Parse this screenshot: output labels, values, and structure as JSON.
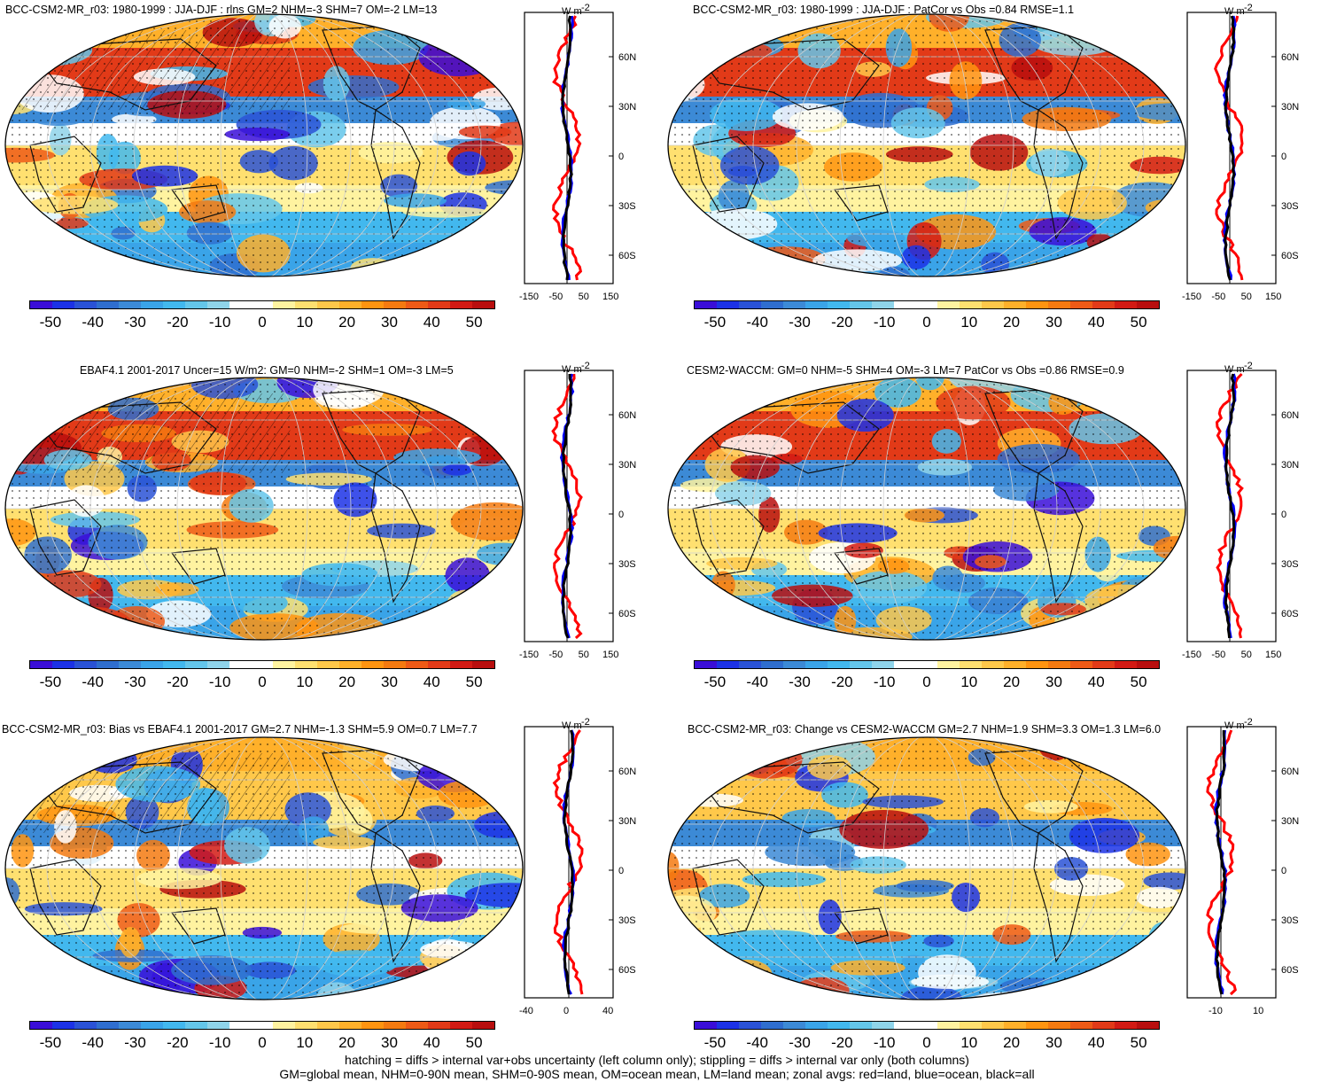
{
  "panels": [
    {
      "title": "BCC-CSM2-MR_r03: 1980-1999 : JJA-DJF : rlns GM=2 NHM=-3 SHM=7 OM=-2 LM=13",
      "hatch": true,
      "zx": [
        "-150",
        "-50",
        "50",
        "150"
      ],
      "zscale": "wide"
    },
    {
      "title": "BCC-CSM2-MR_r03: 1980-1999 : JJA-DJF : PatCor vs Obs =0.84 RMSE=1.1",
      "hatch": false,
      "zx": [
        "-150",
        "-50",
        "50",
        "150"
      ],
      "zscale": "wide"
    },
    {
      "title": "EBAF4.1 2001-2017 Uncer=15 W/m2: GM=0 NHM=-2 SHM=1 OM=-3 LM=5",
      "hatch": true,
      "zx": [
        "-150",
        "-50",
        "50",
        "150"
      ],
      "zscale": "wide"
    },
    {
      "title": "CESM2-WACCM: GM=0 NHM=-5 SHM=4 OM=-3 LM=7 PatCor vs Obs =0.86 RMSE=0.9",
      "hatch": false,
      "zx": [
        "-150",
        "-50",
        "50",
        "150"
      ],
      "zscale": "wide"
    },
    {
      "title": "BCC-CSM2-MR_r03: Bias vs EBAF4.1 2001-2017 GM=2.7 NHM=-1.3 SHM=5.9 OM=0.7 LM=7.7",
      "hatch": true,
      "zx": [
        "-40",
        "0",
        "40"
      ],
      "zscale": "narrow"
    },
    {
      "title": "BCC-CSM2-MR_r03: Change vs CESM2-WACCM GM=2.7 NHM=1.9 SHM=3.3 OM=1.3 LM=6.0",
      "hatch": false,
      "zx": [
        "-10",
        "10"
      ],
      "zscale": "tiny"
    }
  ],
  "zonal_unit": "W m",
  "zonal_unit_exp": "-2",
  "lat_labels": [
    "60N",
    "30N",
    "0",
    "30S",
    "60S"
  ],
  "colorbar_labels": [
    "-50",
    "-40",
    "-30",
    "-20",
    "-10",
    "0",
    "10",
    "20",
    "30",
    "40",
    "50"
  ],
  "colorbar_colors": [
    "#3a0ed8",
    "#1c32e6",
    "#2a52d6",
    "#2f6ecf",
    "#3c8ad6",
    "#3aa4e8",
    "#42b8ee",
    "#64c6ea",
    "#8fd4ea",
    "#ffffff",
    "#ffffff",
    "#fff3a0",
    "#ffe070",
    "#ffc84a",
    "#ffb02a",
    "#ff9410",
    "#f57a10",
    "#ee5a16",
    "#e23a18",
    "#d21a14",
    "#b80e0e"
  ],
  "footer": {
    "line1": "hatching = diffs > internal var+obs uncertainty (left column only); stippling = diffs > internal var only (both columns)",
    "line2": "GM=global mean, NHM=0-90N mean, SHM=0-90S mean, OM=ocean mean, LM=land mean; zonal avgs: red=land, blue=ocean, black=all"
  },
  "series_colors": {
    "land": "#ff0000",
    "ocean": "#0000ff",
    "all": "#000000"
  }
}
